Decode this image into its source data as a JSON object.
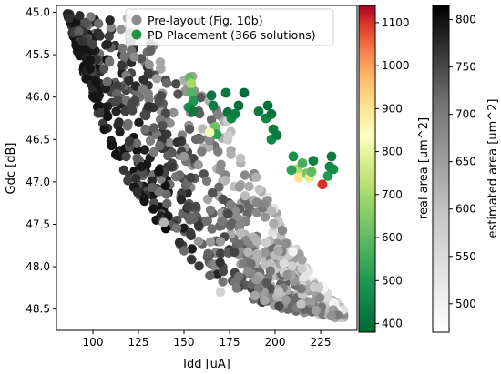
{
  "chart_data": {
    "type": "scatter",
    "xlabel": "Idd [uA]",
    "ylabel": "Gdc [dB]",
    "xlim": [
      80,
      245
    ],
    "ylim": [
      48.75,
      44.92
    ],
    "y_inverted": true,
    "x_ticks": [
      100,
      125,
      150,
      175,
      200,
      225
    ],
    "y_ticks": [
      45.0,
      45.5,
      46.0,
      46.5,
      47.0,
      47.5,
      48.0,
      48.5
    ],
    "legend": {
      "position": "top-right",
      "entries": [
        {
          "label": "Pre-layout (Fig. 10b)",
          "color": "#8c8c8c"
        },
        {
          "label": "PD Placement (366 solutions)",
          "color": "#1a9641"
        }
      ]
    },
    "colorbars": [
      {
        "label": "real area [um^2]",
        "cmap": "RdYlGn_r",
        "range": [
          380,
          1140
        ],
        "ticks": [
          400,
          500,
          600,
          700,
          800,
          900,
          1000,
          1100
        ]
      },
      {
        "label": "estimated area [um^2]",
        "cmap": "Greys",
        "range": [
          470,
          815
        ],
        "ticks": [
          500,
          550,
          600,
          650,
          700,
          750,
          800
        ]
      }
    ],
    "series": [
      {
        "name": "Pre-layout (Fig. 10b)",
        "band": {
          "x_start": 86,
          "x_end": 238,
          "inner_edge": [
            [
              86,
              45.02
            ],
            [
              100,
              45.05
            ],
            [
              115,
              45.1
            ],
            [
              130,
              45.3
            ],
            [
              145,
              45.55
            ],
            [
              160,
              45.85
            ],
            [
              175,
              46.3
            ],
            [
              190,
              46.9
            ],
            [
              205,
              47.5
            ],
            [
              220,
              48.1
            ],
            [
              238,
              48.5
            ]
          ],
          "outer_edge": [
            [
              86,
              45.02
            ],
            [
              95,
              45.75
            ],
            [
              105,
              46.35
            ],
            [
              115,
              46.85
            ],
            [
              130,
              47.35
            ],
            [
              145,
              47.75
            ],
            [
              160,
              48.05
            ],
            [
              175,
              48.3
            ],
            [
              195,
              48.45
            ],
            [
              215,
              48.55
            ],
            [
              238,
              48.62
            ]
          ]
        },
        "points": [
          [
            140,
            47.55
          ],
          [
            139,
            47.48
          ],
          [
            170,
            48.3
          ],
          [
            158,
            47.7
          ],
          [
            119,
            45.07
          ],
          [
            125,
            45.2
          ],
          [
            150,
            46.7
          ],
          [
            190,
            47.7
          ]
        ]
      },
      {
        "name": "PD Placement (366 solutions)",
        "points": [
          {
            "x": 153,
            "y": 45.77,
            "area": 600
          },
          {
            "x": 154,
            "y": 45.84,
            "area": 700
          },
          {
            "x": 154,
            "y": 45.95,
            "area": 580
          },
          {
            "x": 155,
            "y": 46.05,
            "area": 500
          },
          {
            "x": 153,
            "y": 46.12,
            "area": 460
          },
          {
            "x": 155,
            "y": 46.17,
            "area": 420
          },
          {
            "x": 165,
            "y": 45.98,
            "area": 410
          },
          {
            "x": 166,
            "y": 46.1,
            "area": 430
          },
          {
            "x": 166,
            "y": 46.42,
            "area": 760
          },
          {
            "x": 167,
            "y": 46.35,
            "area": 620
          },
          {
            "x": 168,
            "y": 46.44,
            "area": 520
          },
          {
            "x": 164,
            "y": 46.42,
            "area": 820
          },
          {
            "x": 173,
            "y": 45.95,
            "area": 420
          },
          {
            "x": 174,
            "y": 46.18,
            "area": 410
          },
          {
            "x": 176,
            "y": 46.25,
            "area": 450
          },
          {
            "x": 178,
            "y": 46.2,
            "area": 430
          },
          {
            "x": 180,
            "y": 46.1,
            "area": 400
          },
          {
            "x": 183,
            "y": 45.95,
            "area": 390
          },
          {
            "x": 191,
            "y": 46.17,
            "area": 420
          },
          {
            "x": 195,
            "y": 46.25,
            "area": 440
          },
          {
            "x": 196,
            "y": 46.1,
            "area": 400
          },
          {
            "x": 198,
            "y": 46.2,
            "area": 410
          },
          {
            "x": 199,
            "y": 46.38,
            "area": 430
          },
          {
            "x": 198,
            "y": 46.5,
            "area": 460
          },
          {
            "x": 201,
            "y": 46.45,
            "area": 420
          },
          {
            "x": 210,
            "y": 46.7,
            "area": 480
          },
          {
            "x": 212,
            "y": 46.85,
            "area": 700
          },
          {
            "x": 213,
            "y": 46.95,
            "area": 900
          },
          {
            "x": 215,
            "y": 46.78,
            "area": 560
          },
          {
            "x": 217,
            "y": 46.9,
            "area": 640
          },
          {
            "x": 219,
            "y": 46.95,
            "area": 780
          },
          {
            "x": 220,
            "y": 46.88,
            "area": 600
          },
          {
            "x": 221,
            "y": 46.75,
            "area": 440
          },
          {
            "x": 226,
            "y": 47.03,
            "area": 1100
          },
          {
            "x": 229,
            "y": 46.93,
            "area": 500
          },
          {
            "x": 230,
            "y": 46.82,
            "area": 450
          },
          {
            "x": 231,
            "y": 46.7,
            "area": 430
          },
          {
            "x": 232,
            "y": 46.85,
            "area": 470
          },
          {
            "x": 209,
            "y": 46.86,
            "area": 520
          }
        ]
      }
    ]
  }
}
